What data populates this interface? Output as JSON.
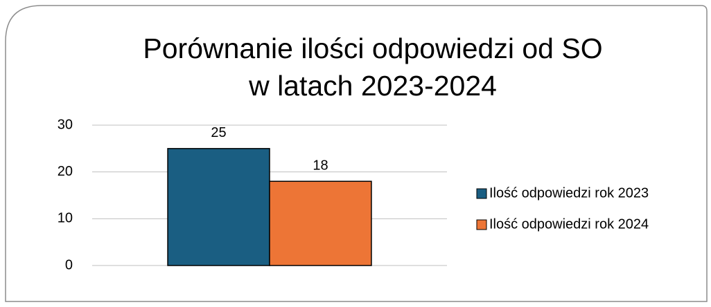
{
  "chart_data": {
    "type": "bar",
    "title": [
      "Porównanie ilości odpowiedzi od SO",
      "w latach 2023-2024"
    ],
    "categories": [
      null
    ],
    "series": [
      {
        "name": "Ilość odpowiedzi rok 2023",
        "color": "#1a5e82",
        "values": [
          25
        ]
      },
      {
        "name": "Ilość odpowiedzi rok 2024",
        "color": "#ed7536",
        "values": [
          18
        ]
      }
    ],
    "ylim": [
      0,
      30
    ],
    "yticks": [
      0,
      10,
      20,
      30
    ],
    "grid": true,
    "data_labels": true,
    "legend": "right"
  }
}
